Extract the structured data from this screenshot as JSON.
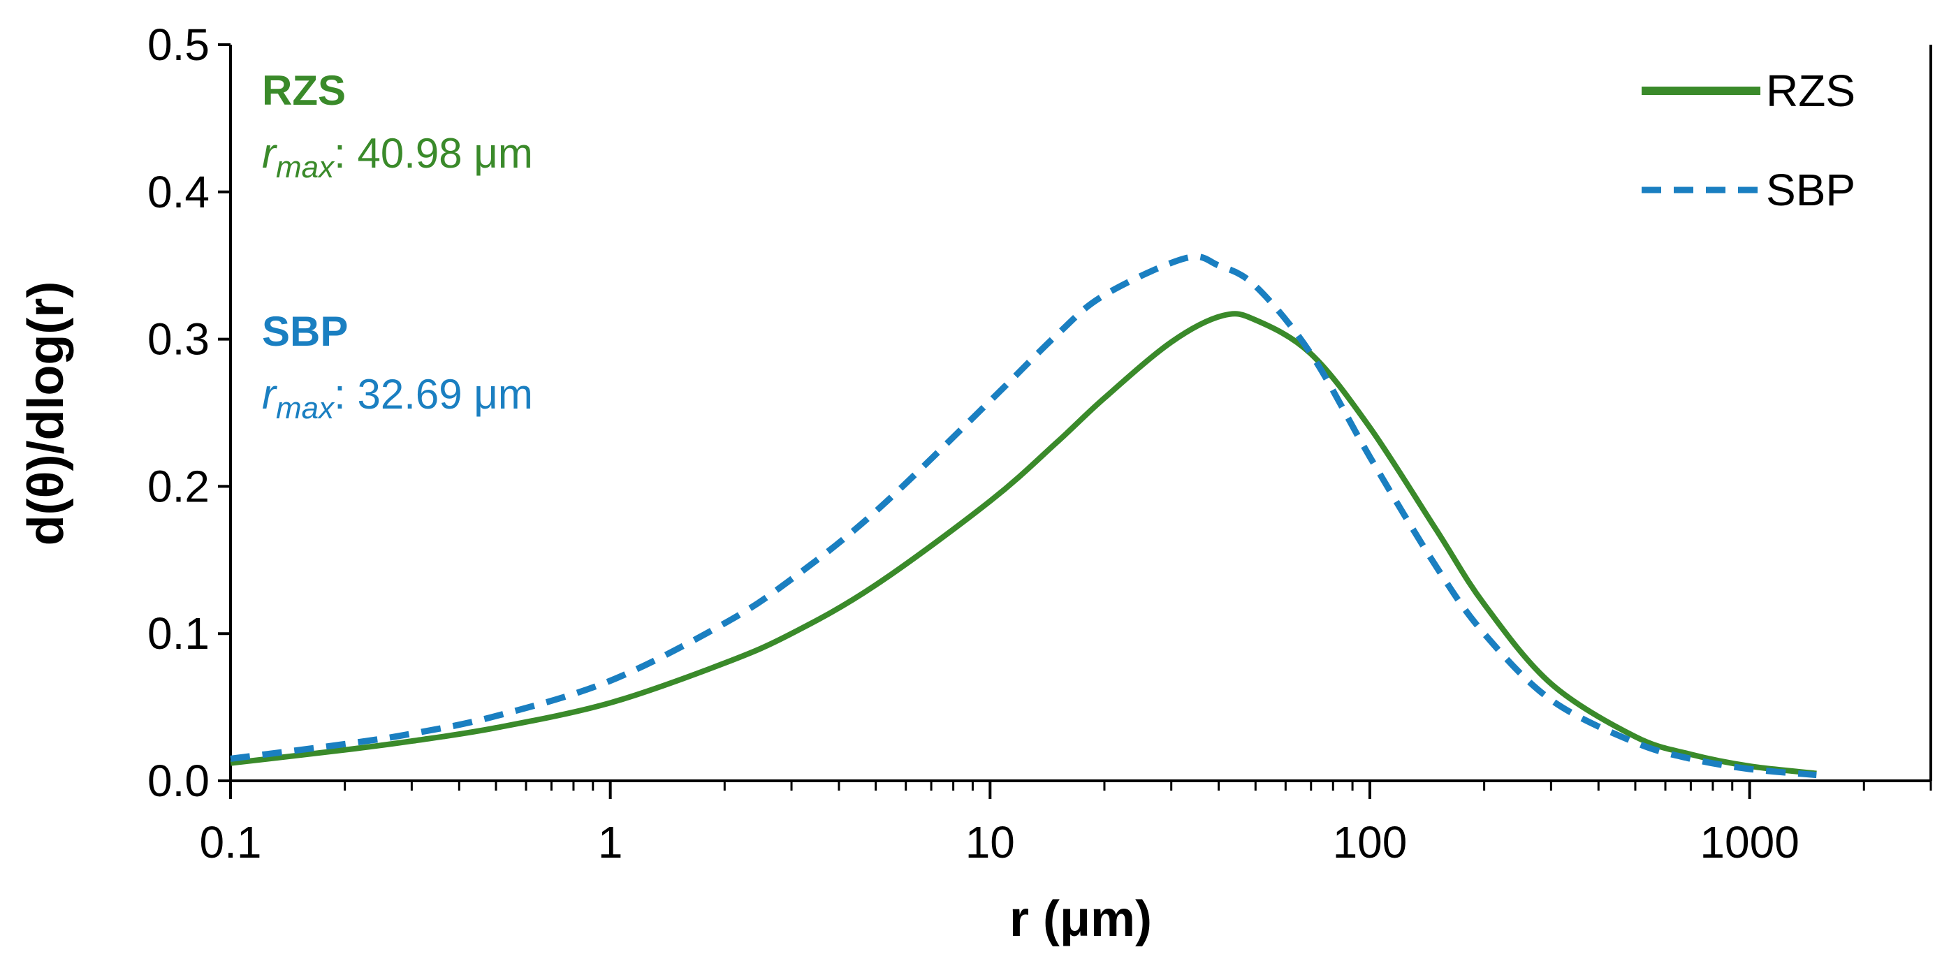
{
  "chart_data": {
    "type": "line",
    "x_scale": "log",
    "xlabel": "r (μm)",
    "ylabel": "d(θ)/dlog(r)",
    "xlim": [
      0.1,
      3000
    ],
    "ylim": [
      0,
      0.5
    ],
    "grid": false,
    "legend_position": "top-right",
    "x_ticks": [
      "0.1",
      "1",
      "10",
      "100",
      "1000"
    ],
    "y_ticks": [
      "0.0",
      "0.1",
      "0.2",
      "0.3",
      "0.4",
      "0.5"
    ],
    "series": [
      {
        "name": "RZS",
        "color": "#3A8A2A",
        "line_style": "solid",
        "x": [
          0.1,
          0.2,
          0.3,
          0.5,
          1,
          2,
          3,
          5,
          10,
          15,
          20,
          30,
          40.98,
          50,
          70,
          100,
          150,
          200,
          300,
          500,
          700,
          1000,
          1500
        ],
        "y": [
          0.012,
          0.021,
          0.027,
          0.036,
          0.053,
          0.08,
          0.1,
          0.133,
          0.19,
          0.23,
          0.26,
          0.298,
          0.316,
          0.313,
          0.29,
          0.24,
          0.17,
          0.12,
          0.066,
          0.03,
          0.018,
          0.01,
          0.005
        ]
      },
      {
        "name": "SBP",
        "color": "#1A7FC1",
        "line_style": "dashed",
        "x": [
          0.1,
          0.2,
          0.3,
          0.5,
          1,
          2,
          3,
          5,
          10,
          15,
          20,
          32.69,
          40,
          50,
          70,
          100,
          150,
          200,
          300,
          500,
          700,
          1000,
          1500
        ],
        "y": [
          0.015,
          0.025,
          0.032,
          0.044,
          0.068,
          0.107,
          0.137,
          0.183,
          0.258,
          0.303,
          0.33,
          0.355,
          0.35,
          0.336,
          0.29,
          0.22,
          0.145,
          0.1,
          0.055,
          0.026,
          0.015,
          0.008,
          0.004
        ]
      }
    ],
    "annotations": [
      {
        "name": "RZS",
        "r_symbol": "r",
        "r_subscript": "max",
        "value_text": ": 40.98 μm",
        "color": "#3A8A2A"
      },
      {
        "name": "SBP",
        "r_symbol": "r",
        "r_subscript": "max",
        "value_text": ": 32.69 μm",
        "color": "#1A7FC1"
      }
    ]
  }
}
